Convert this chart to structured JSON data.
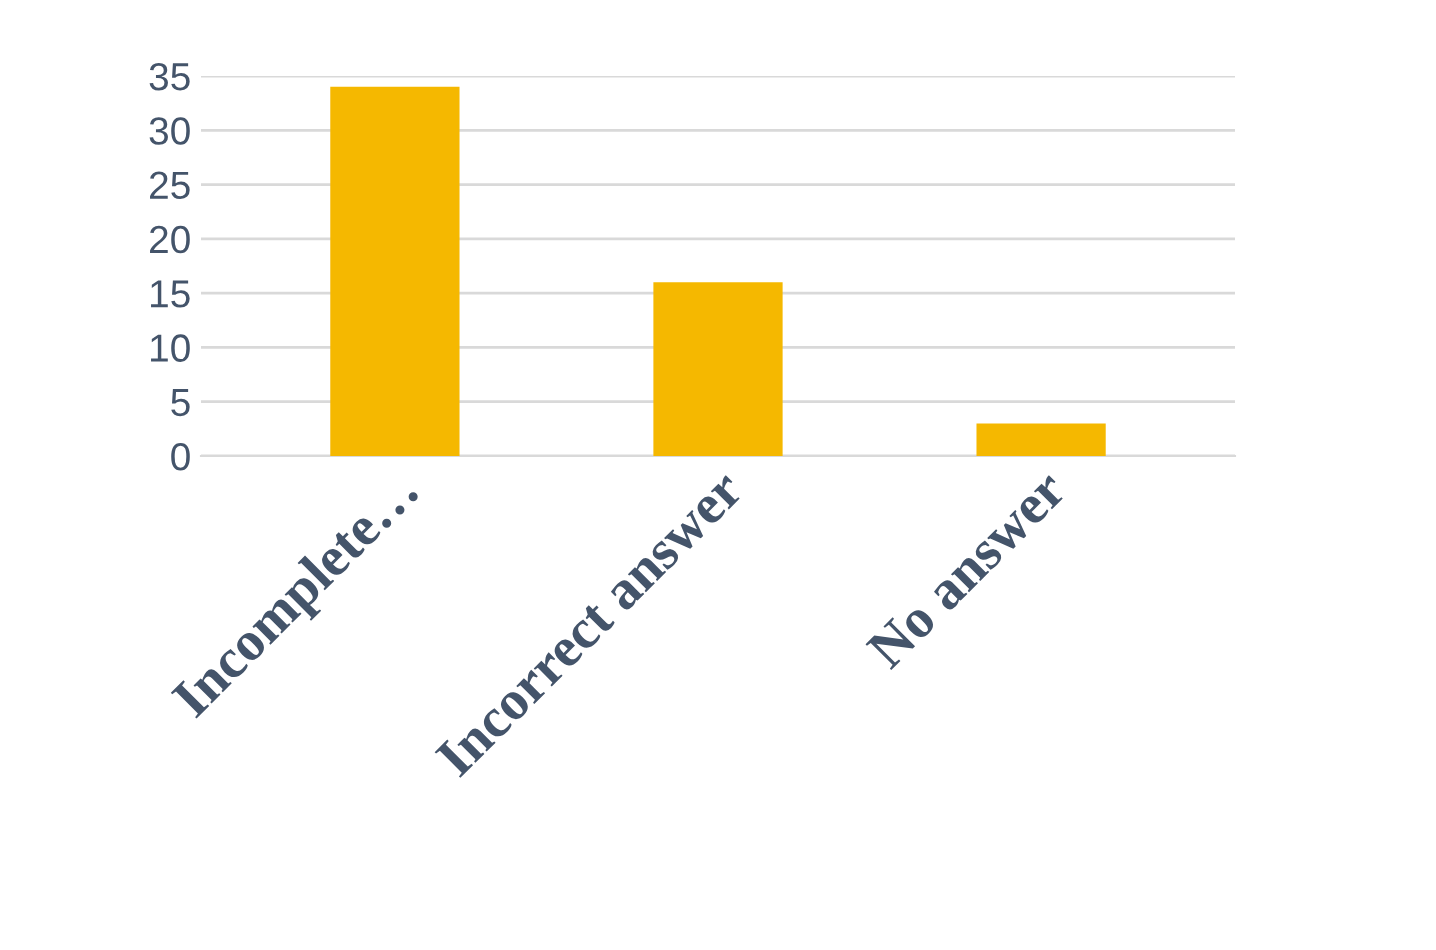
{
  "chart_data": {
    "type": "bar",
    "categories": [
      "Incomplete…",
      "Incorrect answer",
      "No answer"
    ],
    "values": [
      34,
      16,
      3
    ],
    "color": "#f5b800",
    "ylim": [
      0,
      35
    ],
    "yticks": [
      0,
      5,
      10,
      15,
      20,
      25,
      30,
      35
    ],
    "grid": "y"
  }
}
